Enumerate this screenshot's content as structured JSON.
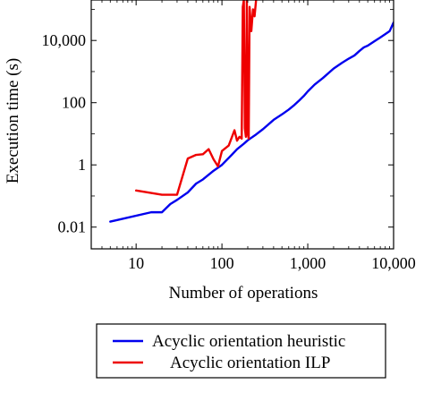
{
  "chart_data": {
    "type": "line",
    "title": "",
    "xlabel": "Number of operations",
    "ylabel": "Execution time (s)",
    "x_scale": "log",
    "y_scale": "log",
    "xlim": [
      3,
      10000
    ],
    "ylim": [
      0.002,
      200000
    ],
    "x_ticks": [
      10,
      100,
      1000,
      10000
    ],
    "x_tick_labels": [
      "10",
      "100",
      "1,000",
      "10,000"
    ],
    "y_ticks": [
      0.01,
      1,
      100,
      10000
    ],
    "y_tick_labels": [
      "0.01",
      "1",
      "100",
      "10,000"
    ],
    "grid": false,
    "legend_position": "below",
    "series": [
      {
        "name": "Acyclic orientation heuristic",
        "color": "#0000ee",
        "x": [
          5,
          15,
          20,
          25,
          30,
          40,
          50,
          60,
          80,
          100,
          130,
          150,
          180,
          200,
          250,
          300,
          400,
          500,
          600,
          700,
          800,
          900,
          1000,
          1200,
          1500,
          2000,
          2500,
          3000,
          3500,
          4000,
          4500,
          5000,
          6000,
          7000,
          8000,
          9000,
          10000
        ],
        "values": [
          0.015,
          0.03,
          0.03,
          0.055,
          0.075,
          0.13,
          0.25,
          0.34,
          0.65,
          1.0,
          2.1,
          3.2,
          4.8,
          6.2,
          9.5,
          14,
          28,
          42,
          60,
          85,
          120,
          165,
          230,
          380,
          620,
          1250,
          1900,
          2600,
          3300,
          4600,
          6000,
          6800,
          9500,
          12500,
          16000,
          20000,
          38000
        ]
      },
      {
        "name": "Acyclic orientation ILP",
        "color": "#ee0000",
        "x": [
          10,
          20,
          30,
          40,
          50,
          60,
          70,
          80,
          90,
          100,
          120,
          140,
          150,
          160,
          170,
          175,
          180,
          185,
          190,
          195,
          200,
          205,
          210,
          220,
          230,
          240,
          250
        ],
        "values": [
          0.15,
          0.11,
          0.11,
          1.6,
          2.1,
          2.2,
          3.2,
          1.5,
          0.9,
          2.8,
          4.2,
          13,
          6.0,
          8.0,
          7.0,
          120000,
          200000,
          15,
          8.0,
          200000,
          10,
          7.0,
          120000,
          20000,
          100000,
          60000,
          200000
        ]
      }
    ]
  }
}
